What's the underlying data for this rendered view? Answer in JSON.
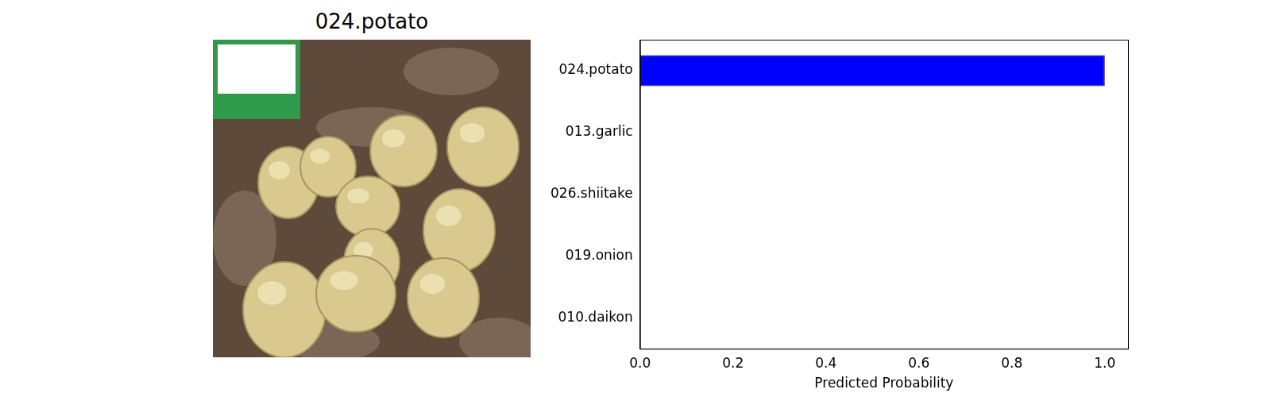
{
  "image": {
    "title": "024.potato"
  },
  "chart_data": {
    "type": "bar",
    "orientation": "horizontal",
    "categories": [
      "024.potato",
      "013.garlic",
      "026.shiitake",
      "019.onion",
      "010.daikon"
    ],
    "values": [
      1.0,
      0.0,
      0.0,
      0.0,
      0.0
    ],
    "color": "#0000ff",
    "x_label": "Predicted Probability",
    "xlim": [
      0,
      1.05
    ],
    "xticks": [
      {
        "value": 0,
        "label": "0.0"
      },
      0.2,
      0.4,
      0.6,
      0.8,
      {
        "value": 1,
        "label": "1.0"
      }
    ],
    "grid": false
  }
}
